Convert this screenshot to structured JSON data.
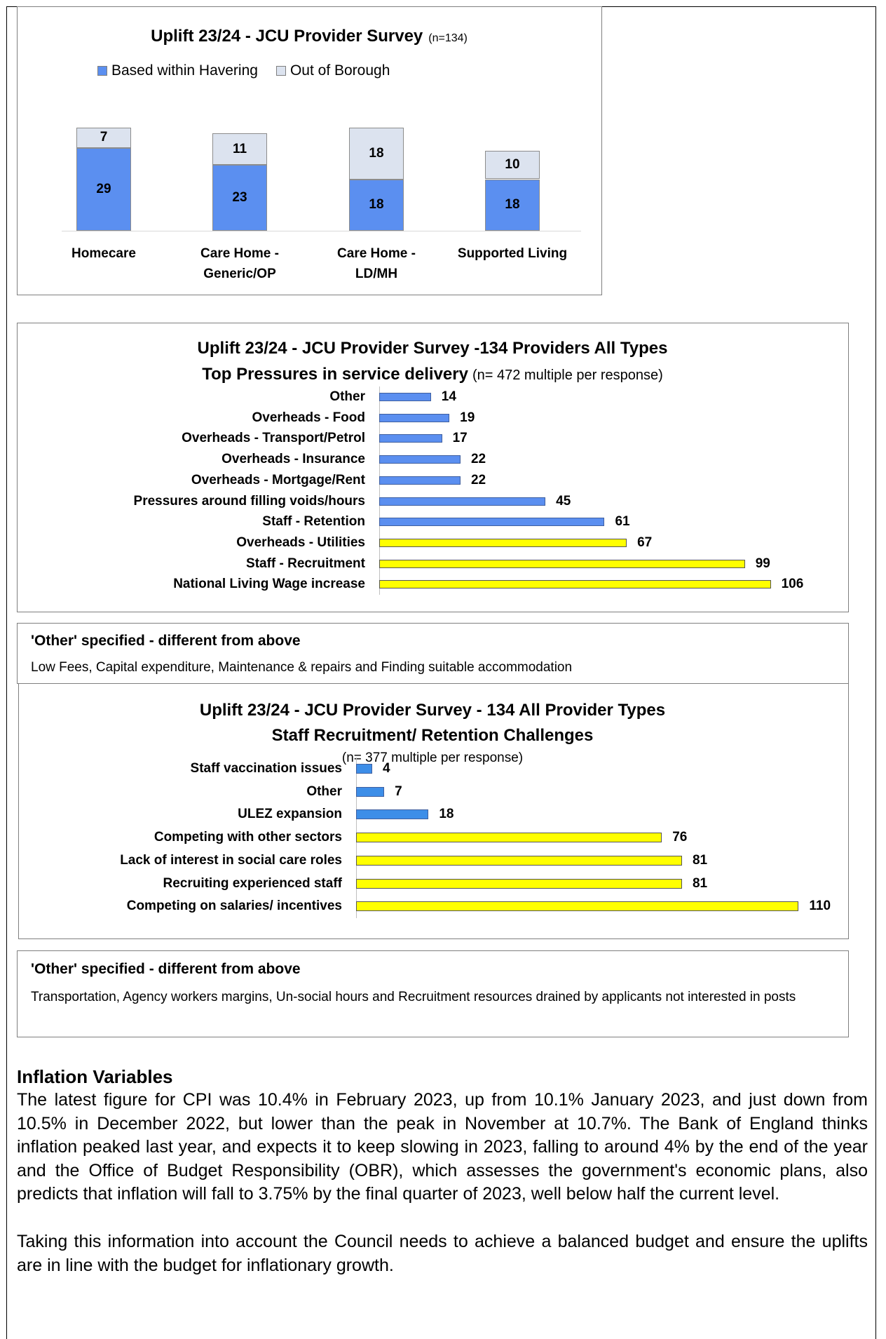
{
  "chart_data": [
    {
      "type": "stacked-bar",
      "title": "Uplift 23/24 - JCU Provider Survey",
      "subtitle": "(n=134)",
      "categories": [
        "Homecare",
        "Care Home - Generic/OP",
        "Care Home - LD/MH",
        "Supported Living"
      ],
      "series": [
        {
          "name": "Based within Havering",
          "color": "#5b8ff0",
          "values": [
            29,
            23,
            18,
            18
          ]
        },
        {
          "name": "Out of Borough",
          "color": "#dce3ef",
          "values": [
            7,
            11,
            18,
            10
          ]
        }
      ]
    },
    {
      "type": "hbar",
      "title": "Uplift 23/24 - JCU Provider Survey -134 Providers All Types",
      "title2": "Top Pressures in service delivery",
      "subtitle": "(n= 472 multiple per response)",
      "categories": [
        "Other",
        "Overheads - Food",
        "Overheads - Transport/Petrol",
        "Overheads - Insurance",
        "Overheads - Mortgage/Rent",
        "Pressures around filling voids/hours",
        "Staff - Retention",
        "Overheads - Utilities",
        "Staff - Recruitment",
        "National Living Wage increase"
      ],
      "values": [
        14,
        19,
        17,
        22,
        22,
        45,
        61,
        67,
        99,
        106
      ],
      "colors": [
        "#5b8ff0",
        "#5b8ff0",
        "#5b8ff0",
        "#5b8ff0",
        "#5b8ff0",
        "#5b8ff0",
        "#5b8ff0",
        "#ffff00",
        "#ffff00",
        "#ffff00"
      ]
    },
    {
      "type": "hbar",
      "title": "Uplift 23/24 - JCU Provider Survey - 134 All Provider Types",
      "title2": "Staff Recruitment/ Retention Challenges",
      "subtitle": "(n= 377 multiple per response)",
      "categories": [
        "Staff vaccination issues",
        "Other",
        "ULEZ expansion",
        "Competing with other sectors",
        "Lack of interest in social care roles",
        "Recruiting experienced staff",
        "Competing on salaries/ incentives"
      ],
      "values": [
        4,
        7,
        18,
        76,
        81,
        81,
        110
      ],
      "colors": [
        "#3d8ee8",
        "#3d8ee8",
        "#3d8ee8",
        "#ffff00",
        "#ffff00",
        "#ffff00",
        "#ffff00"
      ]
    }
  ],
  "other_boxes": [
    {
      "heading": "'Other' specified - different from above",
      "text": "Low Fees, Capital expenditure, Maintenance & repairs and Finding suitable accommodation"
    },
    {
      "heading": "'Other' specified - different from above",
      "text": "Transportation, Agency workers margins, Un-social hours and Recruitment resources drained by applicants not interested in posts"
    }
  ],
  "section": {
    "heading": "Inflation Variables",
    "paragraphs": [
      "The latest figure for CPI was 10.4% in February 2023, up from 10.1% January 2023, and just down from 10.5% in December 2022, but lower than the peak in November at 10.7%. The Bank of England thinks inflation peaked last year, and expects it to keep slowing in 2023, falling to around 4% by the end of the year and the Office of Budget Responsibility (OBR), which assesses the government's economic plans, also predicts that inflation will fall to 3.75% by the final quarter of 2023, well below half the current level.",
      "Taking this information into account the Council needs to achieve a balanced budget and ensure the uplifts are in line with the budget for inflationary growth."
    ]
  }
}
